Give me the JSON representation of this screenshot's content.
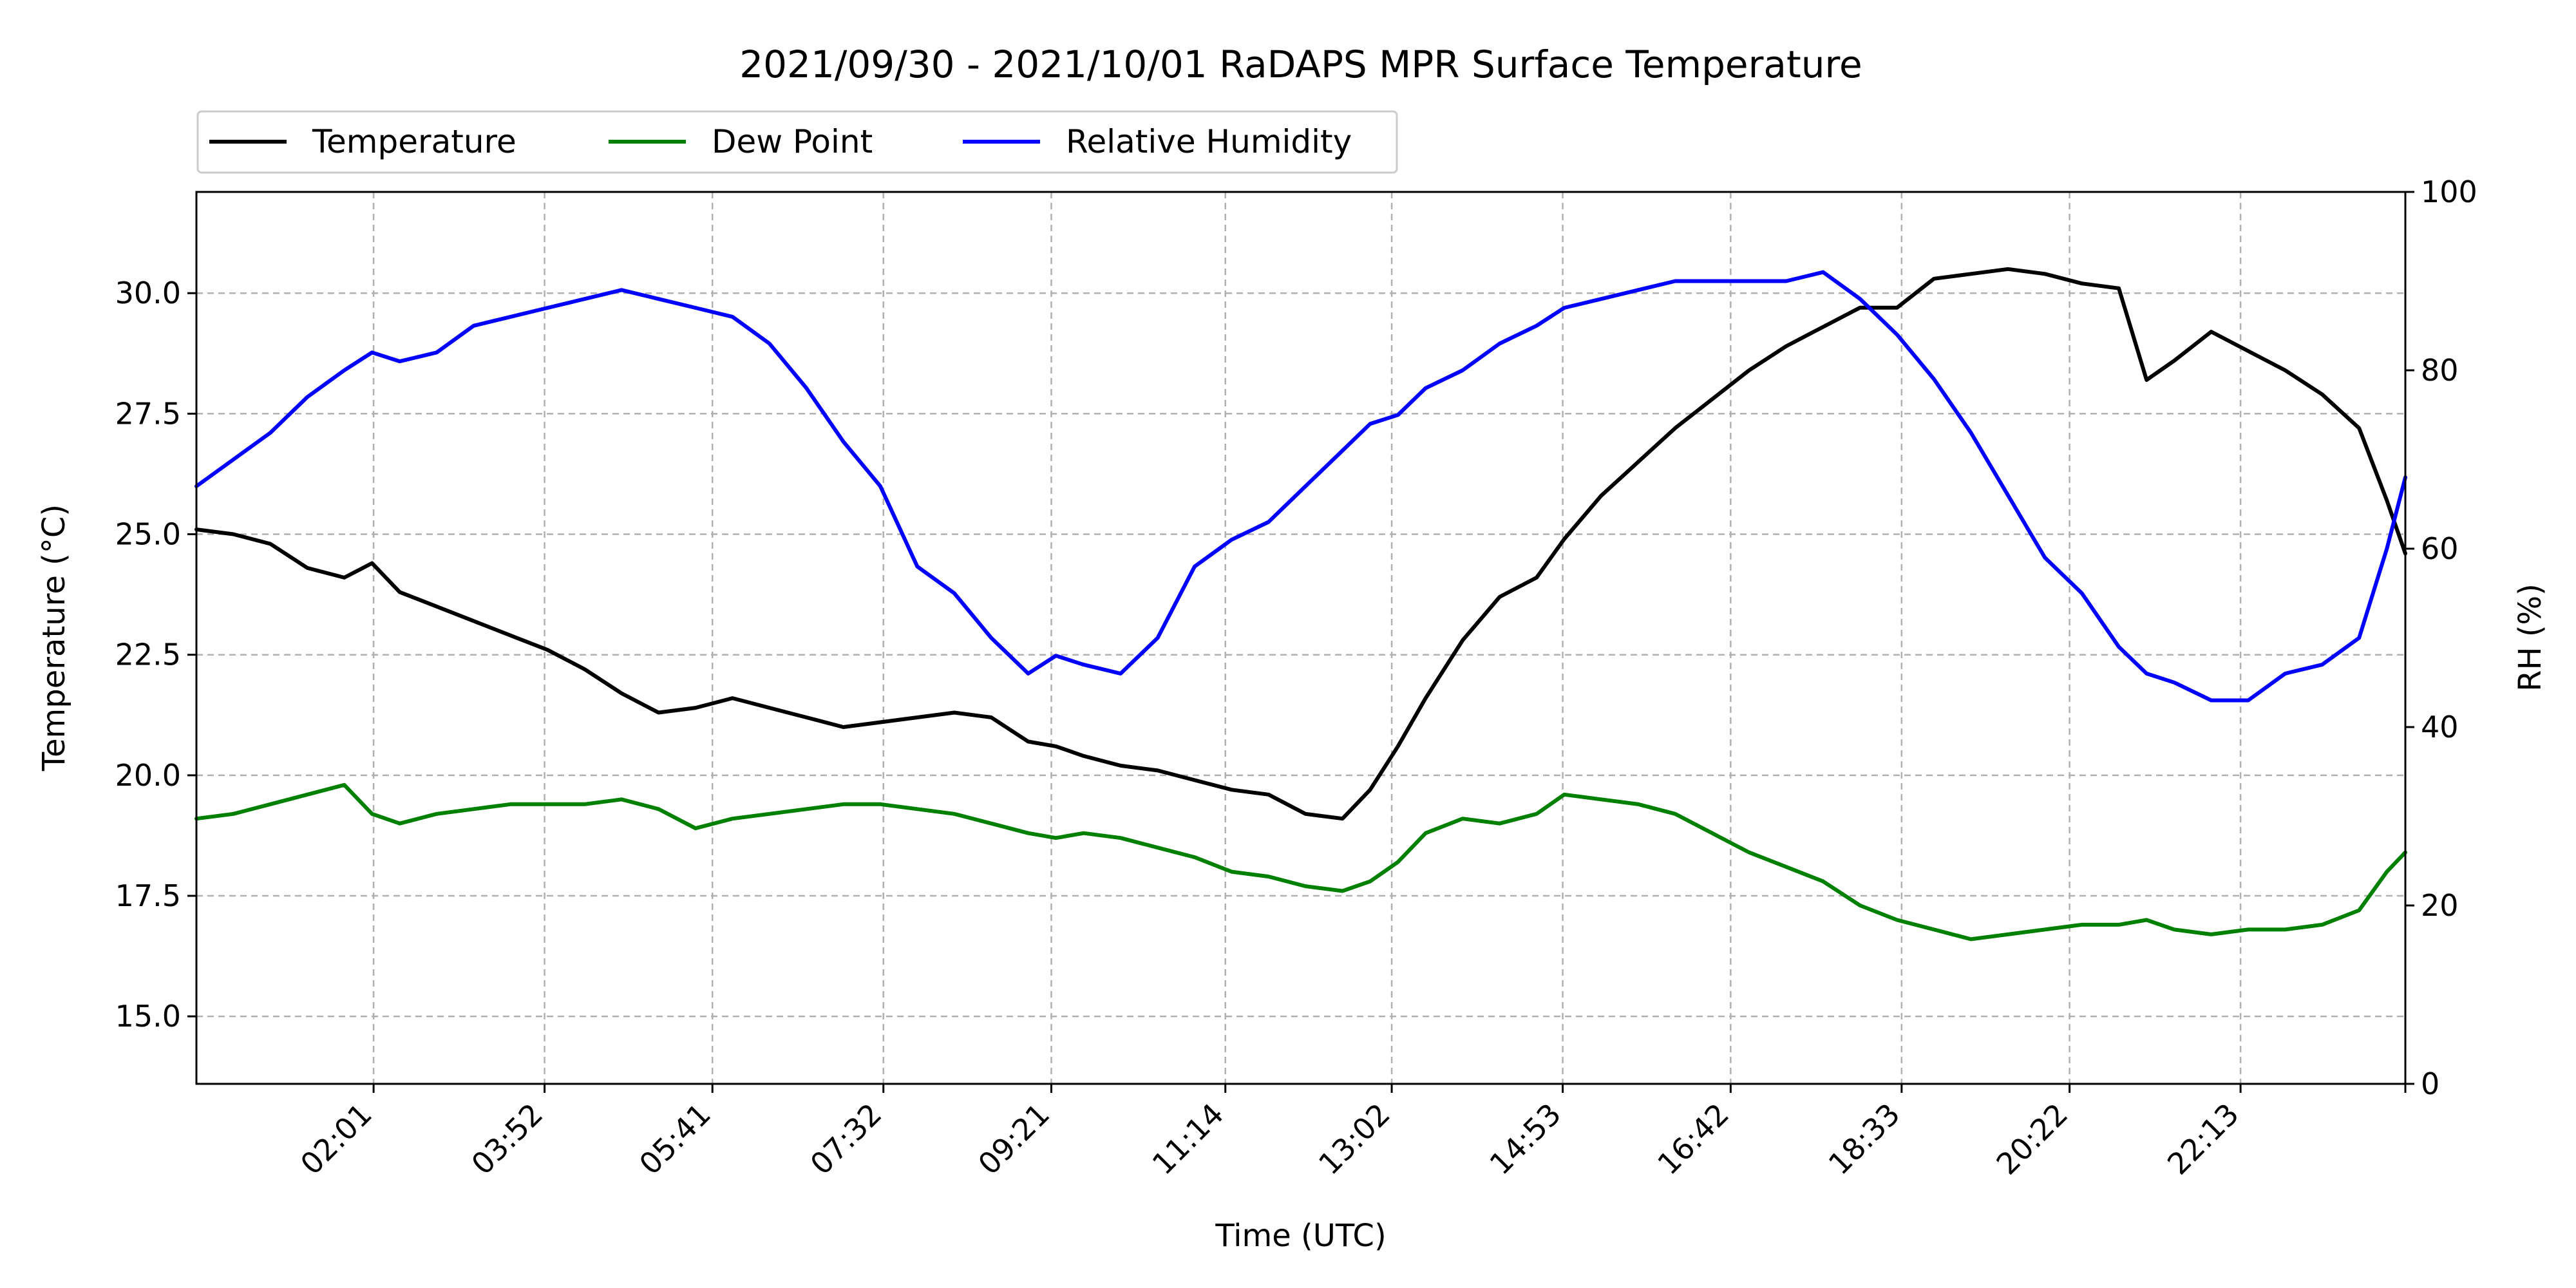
{
  "chart_data": {
    "type": "line",
    "title": "2021/09/30 - 2021/10/01 RaDAPS MPR Surface Temperature",
    "xlabel": "Time (UTC)",
    "ylabel_left": "Temperature ($^\\circ$C)",
    "ylabel_left_display": "Temperature (°C)",
    "ylabel_right": "RH (%)",
    "x_tick_labels": [
      "02:01",
      "03:52",
      "05:41",
      "07:32",
      "09:21",
      "11:14",
      "13:02",
      "14:53",
      "16:42",
      "18:33",
      "20:22",
      "22:13"
    ],
    "x_tick_hours": [
      2.017,
      3.867,
      5.683,
      7.533,
      9.35,
      11.233,
      13.033,
      14.883,
      16.7,
      18.55,
      20.367,
      22.217
    ],
    "xlim_hours": [
      0.1,
      24.0
    ],
    "ylim_left": [
      13.6,
      32.1
    ],
    "yticks_left": [
      "15.0",
      "17.5",
      "20.0",
      "22.5",
      "25.0",
      "27.5",
      "30.0"
    ],
    "ylim_right": [
      0,
      100
    ],
    "yticks_right": [
      "0",
      "20",
      "40",
      "60",
      "80",
      "100"
    ],
    "grid": true,
    "legend_position": "above-left",
    "series": [
      {
        "name": "Temperature",
        "color": "#000000",
        "axis": "left",
        "x": [
          0.1,
          0.5,
          0.9,
          1.3,
          1.7,
          2.0,
          2.3,
          2.7,
          3.1,
          3.5,
          3.9,
          4.3,
          4.7,
          5.1,
          5.5,
          5.9,
          6.3,
          6.7,
          7.1,
          7.5,
          7.9,
          8.3,
          8.7,
          9.1,
          9.4,
          9.7,
          10.1,
          10.5,
          10.9,
          11.3,
          11.7,
          12.1,
          12.5,
          12.8,
          13.1,
          13.4,
          13.8,
          14.2,
          14.6,
          14.9,
          15.3,
          15.7,
          16.1,
          16.5,
          16.9,
          17.3,
          17.7,
          18.1,
          18.5,
          18.9,
          19.3,
          19.7,
          20.1,
          20.5,
          20.9,
          21.2,
          21.5,
          21.9,
          22.3,
          22.7,
          23.1,
          23.5,
          23.8,
          24.0
        ],
        "y": [
          25.1,
          25.0,
          24.8,
          24.3,
          24.1,
          24.4,
          23.8,
          23.5,
          23.2,
          22.9,
          22.6,
          22.2,
          21.7,
          21.3,
          21.4,
          21.6,
          21.4,
          21.2,
          21.0,
          21.1,
          21.2,
          21.3,
          21.2,
          20.7,
          20.6,
          20.4,
          20.2,
          20.1,
          19.9,
          19.7,
          19.6,
          19.2,
          19.1,
          19.7,
          20.6,
          21.6,
          22.8,
          23.7,
          24.1,
          24.9,
          25.8,
          26.5,
          27.2,
          27.8,
          28.4,
          28.9,
          29.3,
          29.7,
          29.7,
          30.3,
          30.4,
          30.5,
          30.4,
          30.2,
          30.1,
          28.2,
          28.6,
          29.2,
          28.8,
          28.4,
          27.9,
          27.2,
          25.7,
          24.6
        ]
      },
      {
        "name": "Dew Point",
        "color": "#008000",
        "axis": "left",
        "x": [
          0.1,
          0.5,
          0.9,
          1.3,
          1.7,
          2.0,
          2.3,
          2.7,
          3.1,
          3.5,
          3.9,
          4.3,
          4.7,
          5.1,
          5.5,
          5.9,
          6.3,
          6.7,
          7.1,
          7.5,
          7.9,
          8.3,
          8.7,
          9.1,
          9.4,
          9.7,
          10.1,
          10.5,
          10.9,
          11.3,
          11.7,
          12.1,
          12.5,
          12.8,
          13.1,
          13.4,
          13.8,
          14.2,
          14.6,
          14.9,
          15.3,
          15.7,
          16.1,
          16.5,
          16.9,
          17.3,
          17.7,
          18.1,
          18.5,
          18.9,
          19.3,
          19.7,
          20.1,
          20.5,
          20.9,
          21.2,
          21.5,
          21.9,
          22.3,
          22.7,
          23.1,
          23.5,
          23.8,
          24.0
        ],
        "y": [
          19.1,
          19.2,
          19.4,
          19.6,
          19.8,
          19.2,
          19.0,
          19.2,
          19.3,
          19.4,
          19.4,
          19.4,
          19.5,
          19.3,
          18.9,
          19.1,
          19.2,
          19.3,
          19.4,
          19.4,
          19.3,
          19.2,
          19.0,
          18.8,
          18.7,
          18.8,
          18.7,
          18.5,
          18.3,
          18.0,
          17.9,
          17.7,
          17.6,
          17.8,
          18.2,
          18.8,
          19.1,
          19.0,
          19.2,
          19.6,
          19.5,
          19.4,
          19.2,
          18.8,
          18.4,
          18.1,
          17.8,
          17.3,
          17.0,
          16.8,
          16.6,
          16.7,
          16.8,
          16.9,
          16.9,
          17.0,
          16.8,
          16.7,
          16.8,
          16.8,
          16.9,
          17.2,
          18.0,
          18.4
        ]
      },
      {
        "name": "Relative Humidity",
        "color": "#0000ff",
        "axis": "right",
        "x": [
          0.1,
          0.5,
          0.9,
          1.3,
          1.7,
          2.0,
          2.3,
          2.7,
          3.1,
          3.5,
          3.9,
          4.3,
          4.7,
          5.1,
          5.5,
          5.9,
          6.3,
          6.7,
          7.1,
          7.5,
          7.9,
          8.3,
          8.7,
          9.1,
          9.4,
          9.7,
          10.1,
          10.5,
          10.9,
          11.3,
          11.7,
          12.1,
          12.5,
          12.8,
          13.1,
          13.4,
          13.8,
          14.2,
          14.6,
          14.9,
          15.3,
          15.7,
          16.1,
          16.5,
          16.9,
          17.3,
          17.7,
          18.1,
          18.5,
          18.9,
          19.3,
          19.7,
          20.1,
          20.5,
          20.9,
          21.2,
          21.5,
          21.9,
          22.3,
          22.7,
          23.1,
          23.5,
          23.8,
          24.0
        ],
        "y": [
          67,
          70,
          73,
          77,
          80,
          82,
          81,
          82,
          85,
          86,
          87,
          88,
          89,
          88,
          87,
          86,
          83,
          78,
          72,
          67,
          58,
          55,
          50,
          46,
          48,
          47,
          46,
          50,
          58,
          61,
          63,
          67,
          71,
          74,
          75,
          78,
          80,
          83,
          85,
          87,
          88,
          89,
          90,
          90,
          90,
          90,
          91,
          88,
          84,
          79,
          73,
          66,
          59,
          55,
          49,
          46,
          45,
          43,
          43,
          46,
          47,
          50,
          60,
          68
        ]
      }
    ]
  }
}
